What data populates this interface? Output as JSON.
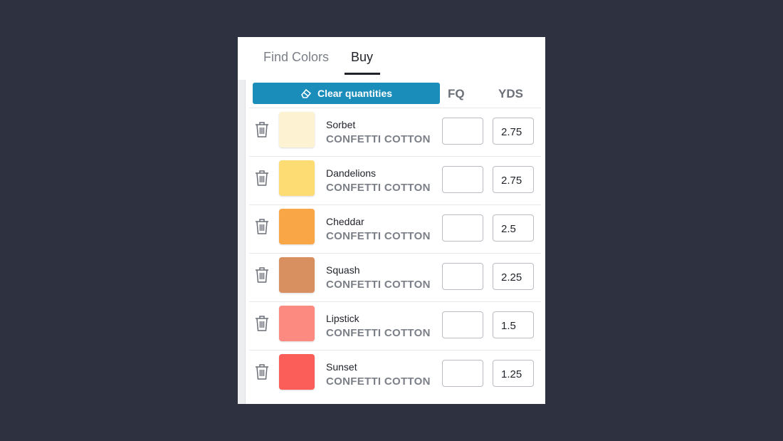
{
  "tabs": [
    "Find Colors",
    "Buy"
  ],
  "active_tab": 1,
  "clear_button": "Clear quantities",
  "columns": [
    "FQ",
    "YDS"
  ],
  "rows": [
    {
      "name": "Sorbet",
      "line": "CONFETTI COTTON",
      "color": "#fdf3d3",
      "yds": "2.75"
    },
    {
      "name": "Dandelions",
      "line": "CONFETTI COTTON",
      "color": "#fddc74",
      "yds": "2.75"
    },
    {
      "name": "Cheddar",
      "line": "CONFETTI COTTON",
      "color": "#f9a647",
      "yds": "2.5"
    },
    {
      "name": "Squash",
      "line": "CONFETTI COTTON",
      "color": "#d89060",
      "yds": "2.25"
    },
    {
      "name": "Lipstick",
      "line": "CONFETTI COTTON",
      "color": "#fc8a80",
      "yds": "1.5"
    },
    {
      "name": "Sunset",
      "line": "CONFETTI COTTON",
      "color": "#fb5e58",
      "yds": "1.25"
    }
  ]
}
